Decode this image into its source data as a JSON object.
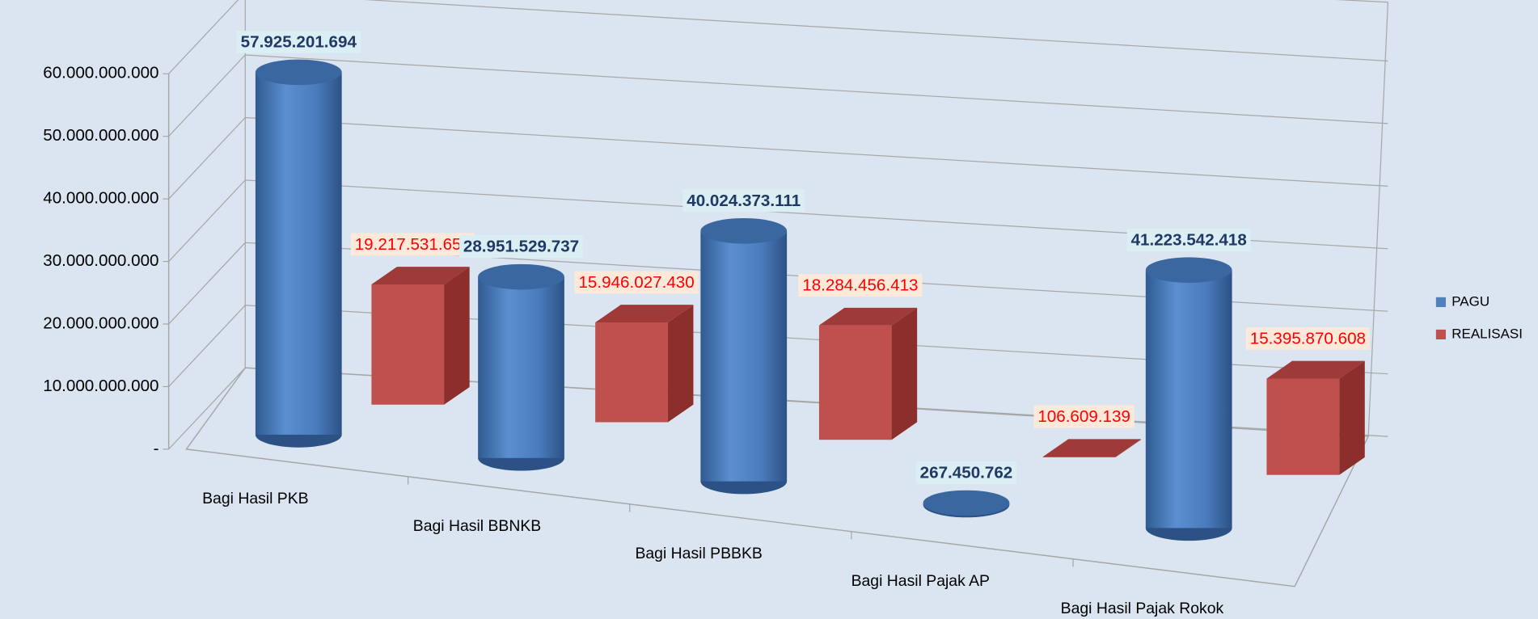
{
  "chart_data": {
    "type": "bar3d",
    "categories": [
      "Bagi Hasil PKB",
      "Bagi Hasil BBNKB",
      "Bagi Hasil PBBKB",
      "Bagi Hasil Pajak AP",
      "Bagi Hasil Pajak Rokok"
    ],
    "series": [
      {
        "name": "PAGU",
        "color": "#4f81bd",
        "values": [
          57925201694,
          28951529737,
          40024373111,
          267450762,
          41223542418
        ],
        "value_labels": [
          "57.925.201.694",
          "28.951.529.737",
          "40.024.373.111",
          "267.450.762",
          "41.223.542.418"
        ]
      },
      {
        "name": "REALISASI",
        "color": "#c0504d",
        "values": [
          19217531659,
          15946027430,
          18284456413,
          106609139,
          15395870608
        ],
        "value_labels": [
          "19.217.531.659",
          "15.946.027.430",
          "18.284.456.413",
          "106.609.139",
          "15.395.870.608"
        ]
      }
    ],
    "ylim": [
      0,
      60000000000
    ],
    "yticks": [
      {
        "value": 0,
        "label": "-"
      },
      {
        "value": 10000000000,
        "label": "10.000.000.000"
      },
      {
        "value": 20000000000,
        "label": "20.000.000.000"
      },
      {
        "value": 30000000000,
        "label": "30.000.000.000"
      },
      {
        "value": 40000000000,
        "label": "40.000.000.000"
      },
      {
        "value": 50000000000,
        "label": "50.000.000.000"
      },
      {
        "value": 60000000000,
        "label": "60.000.000.000"
      }
    ],
    "grid": true,
    "legend": "right"
  }
}
